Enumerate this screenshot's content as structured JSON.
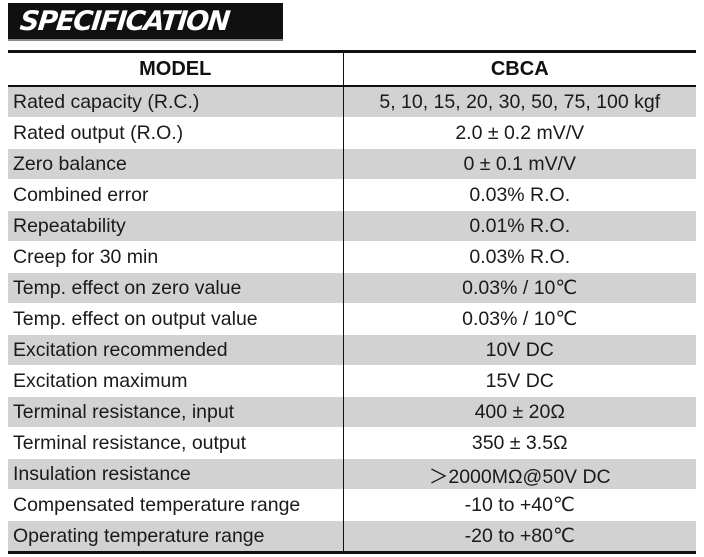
{
  "title": "SPECIFICATION",
  "table": {
    "header": {
      "key": "MODEL",
      "value": "CBCA"
    },
    "rows": [
      {
        "key": "Rated capacity (R.C.)",
        "value": "5, 10, 15, 20, 30, 50, 75, 100 kgf"
      },
      {
        "key": "Rated output (R.O.)",
        "value": "2.0 ± 0.2 mV/V"
      },
      {
        "key": "Zero balance",
        "value": "0 ± 0.1 mV/V"
      },
      {
        "key": "Combined error",
        "value": "0.03% R.O."
      },
      {
        "key": "Repeatability",
        "value": "0.01% R.O."
      },
      {
        "key": "Creep for 30 min",
        "value": "0.03% R.O."
      },
      {
        "key": "Temp. effect on zero value",
        "value": "0.03% / 10℃"
      },
      {
        "key": "Temp. effect on output value",
        "value": "0.03% / 10℃"
      },
      {
        "key": "Excitation recommended",
        "value": "10V DC"
      },
      {
        "key": "Excitation maximum",
        "value": "15V DC"
      },
      {
        "key": "Terminal resistance, input",
        "value": "400 ± 20Ω"
      },
      {
        "key": "Terminal resistance, output",
        "value": "350 ± 3.5Ω"
      },
      {
        "key": "Insulation resistance",
        "value": "＞2000MΩ@50V DC"
      },
      {
        "key": "Compensated temperature range",
        "value": "-10 to +40℃"
      },
      {
        "key": "Operating temperature range",
        "value": "-20 to +80℃"
      }
    ]
  },
  "colors": {
    "banner": "#101010",
    "shaded_row": "#d2d2d2",
    "plain_row": "#ffffff",
    "rule": "#111111"
  }
}
